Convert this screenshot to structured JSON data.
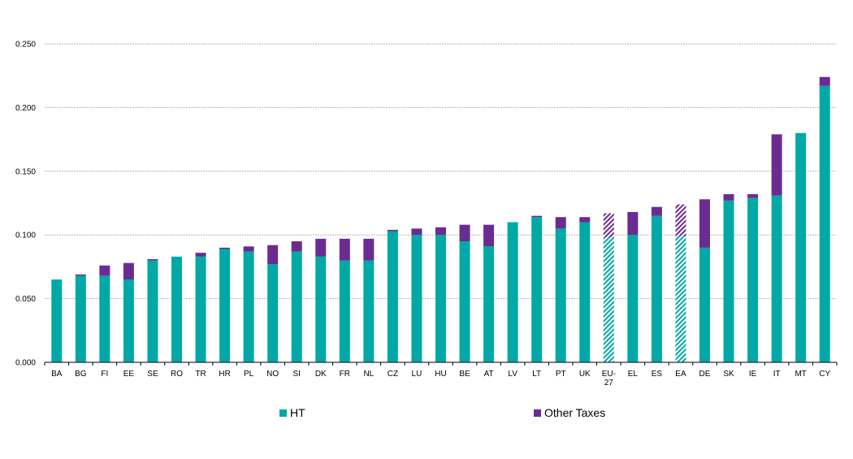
{
  "chart_data": {
    "type": "bar",
    "stacked": true,
    "categories": [
      "BA",
      "BG",
      "FI",
      "EE",
      "SE",
      "RO",
      "TR",
      "HR",
      "PL",
      "NO",
      "SI",
      "DK",
      "FR",
      "NL",
      "CZ",
      "LU",
      "HU",
      "BE",
      "AT",
      "LV",
      "LT",
      "PT",
      "UK",
      "EU-27",
      "EL",
      "ES",
      "EA",
      "DE",
      "SK",
      "IE",
      "IT",
      "MT",
      "CY"
    ],
    "hatched_categories": [
      "EU-27",
      "EA"
    ],
    "series": [
      {
        "name": "HT",
        "color": "#00a9a5",
        "values": [
          0.065,
          0.068,
          0.068,
          0.065,
          0.08,
          0.083,
          0.083,
          0.089,
          0.087,
          0.077,
          0.087,
          0.083,
          0.08,
          0.08,
          0.103,
          0.1,
          0.1,
          0.095,
          0.091,
          0.11,
          0.114,
          0.105,
          0.11,
          0.098,
          0.1,
          0.115,
          0.099,
          0.09,
          0.127,
          0.129,
          0.131,
          0.18,
          0.217
        ]
      },
      {
        "name": "Other Taxes",
        "color": "#6a2c91",
        "values": [
          0.0,
          0.001,
          0.008,
          0.013,
          0.001,
          0.0,
          0.003,
          0.001,
          0.004,
          0.015,
          0.008,
          0.014,
          0.017,
          0.017,
          0.001,
          0.005,
          0.006,
          0.013,
          0.017,
          0.0,
          0.001,
          0.009,
          0.004,
          0.019,
          0.018,
          0.007,
          0.025,
          0.038,
          0.005,
          0.003,
          0.048,
          0.0,
          0.007
        ]
      }
    ],
    "ylim": [
      0,
      0.25
    ],
    "yticks": [
      "0.000",
      "0.050",
      "0.100",
      "0.150",
      "0.200",
      "0.250"
    ],
    "grid": true,
    "legend_position": "bottom"
  }
}
